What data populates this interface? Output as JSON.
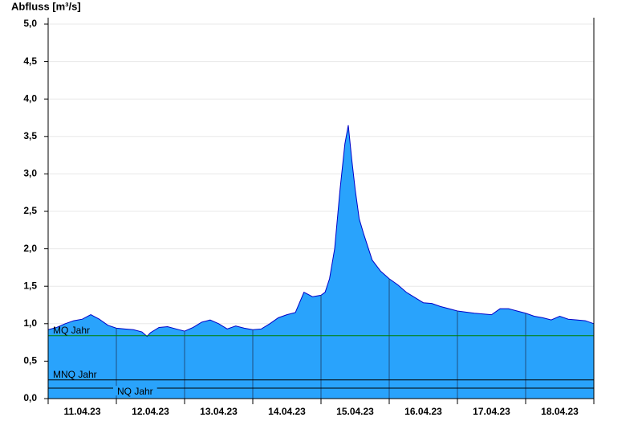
{
  "chart_data": {
    "type": "area",
    "y_label": "Abfluss [m³/s]",
    "x": [
      0,
      0.125,
      0.25,
      0.375,
      0.5,
      0.625,
      0.75,
      0.875,
      1.0,
      1.125,
      1.25,
      1.375,
      1.45,
      1.5,
      1.625,
      1.75,
      1.875,
      2.0,
      2.125,
      2.25,
      2.375,
      2.5,
      2.625,
      2.75,
      2.875,
      3.0,
      3.125,
      3.25,
      3.375,
      3.5,
      3.625,
      3.75,
      3.875,
      4.0,
      4.06,
      4.125,
      4.2,
      4.28,
      4.35,
      4.4,
      4.45,
      4.5,
      4.56,
      4.625,
      4.75,
      4.875,
      5.0,
      5.125,
      5.25,
      5.375,
      5.5,
      5.625,
      5.75,
      5.875,
      6.0,
      6.25,
      6.5,
      6.625,
      6.75,
      6.875,
      7.0,
      7.125,
      7.25,
      7.375,
      7.5,
      7.625,
      7.75,
      7.875,
      8.0
    ],
    "values": [
      0.92,
      0.95,
      1.0,
      1.04,
      1.06,
      1.12,
      1.06,
      0.98,
      0.94,
      0.93,
      0.92,
      0.89,
      0.83,
      0.88,
      0.95,
      0.96,
      0.93,
      0.9,
      0.95,
      1.02,
      1.05,
      1.0,
      0.93,
      0.97,
      0.94,
      0.92,
      0.93,
      1.0,
      1.08,
      1.12,
      1.15,
      1.42,
      1.36,
      1.38,
      1.42,
      1.6,
      2.0,
      2.8,
      3.4,
      3.65,
      3.2,
      2.8,
      2.4,
      2.2,
      1.85,
      1.7,
      1.6,
      1.52,
      1.42,
      1.35,
      1.28,
      1.27,
      1.23,
      1.2,
      1.17,
      1.14,
      1.12,
      1.2,
      1.2,
      1.17,
      1.14,
      1.1,
      1.08,
      1.05,
      1.1,
      1.06,
      1.05,
      1.04,
      1.0
    ],
    "color": "#29a3fc",
    "line_color": "#0000c8",
    "xlim": [
      0,
      8
    ],
    "xticks": [
      {
        "value": 0,
        "label": "11.04.23"
      },
      {
        "value": 1,
        "label": "12.04.23"
      },
      {
        "value": 2,
        "label": "13.04.23"
      },
      {
        "value": 3,
        "label": "14.04.23"
      },
      {
        "value": 4,
        "label": "15.04.23"
      },
      {
        "value": 5,
        "label": "16.04.23"
      },
      {
        "value": 6,
        "label": "17.04.23"
      },
      {
        "value": 7,
        "label": "18.04.23"
      }
    ],
    "ylim": [
      0,
      5.0
    ],
    "yticks": [
      {
        "value": 0,
        "label": "0,0"
      },
      {
        "value": 0.5,
        "label": "0,5"
      },
      {
        "value": 1.0,
        "label": "1,0"
      },
      {
        "value": 1.5,
        "label": "1,5"
      },
      {
        "value": 2.0,
        "label": "2,0"
      },
      {
        "value": 2.5,
        "label": "2,5"
      },
      {
        "value": 3.0,
        "label": "3,0"
      },
      {
        "value": 3.5,
        "label": "3,5"
      },
      {
        "value": 4.0,
        "label": "4,0"
      },
      {
        "value": 4.5,
        "label": "4,5"
      },
      {
        "value": 5.0,
        "label": "5,0"
      }
    ],
    "grid": true,
    "reference_lines": [
      {
        "name": "MQ Jahr",
        "value": 0.84,
        "color": "#008000"
      },
      {
        "name": "MNQ Jahr",
        "value": 0.25,
        "color": "#000000"
      },
      {
        "name": "NQ Jahr",
        "value": 0.14,
        "color": "#000000"
      }
    ]
  }
}
